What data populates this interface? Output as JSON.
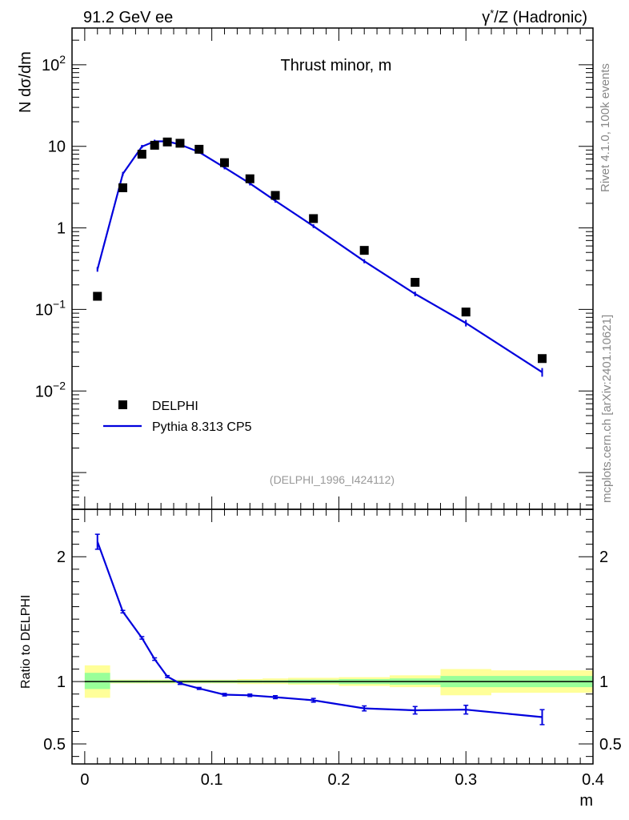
{
  "header": {
    "left": "91.2 GeV ee",
    "right_prefix": "γ",
    "right_sup": "*",
    "right_suffix": "/Z (Hadronic)"
  },
  "side_labels": {
    "rivet": "Rivet 4.1.0,  100k events",
    "mcplots": "mcplots.cern.ch [arXiv:2401.10621]"
  },
  "colors": {
    "data": "#000000",
    "mc": "#0000dd",
    "band_inner": "#99ff99",
    "band_outer": "#ffff99"
  },
  "chart_data": [
    {
      "type": "scatter",
      "title": "Thrust minor, m",
      "analysis_id": "(DELPHI_1996_I424112)",
      "ylabel": {
        "prefix": "N  ",
        "main": "dσ/dm"
      },
      "xlim": [
        -0.01,
        0.4
      ],
      "ylim_log10": [
        -3.45,
        2.45
      ],
      "yscale": "log",
      "y_ticks": [
        {
          "exp": 2,
          "base": "10",
          "sup": "2"
        },
        {
          "exp": 1,
          "base": "10",
          "sup": ""
        },
        {
          "exp": 0,
          "base": "1",
          "sup": ""
        },
        {
          "exp": -1,
          "base": "10",
          "sup": "−1"
        },
        {
          "exp": -2,
          "base": "10",
          "sup": "−2"
        }
      ],
      "legend": [
        "DELPHI",
        "Pythia 8.313 CP5"
      ],
      "series": [
        {
          "name": "DELPHI",
          "marker": "square",
          "x": [
            0.01,
            0.03,
            0.045,
            0.055,
            0.065,
            0.075,
            0.09,
            0.11,
            0.13,
            0.15,
            0.18,
            0.22,
            0.26,
            0.3,
            0.36
          ],
          "y": [
            0.145,
            3.1,
            8.0,
            10.3,
            11.3,
            10.9,
            9.2,
            6.3,
            4.0,
            2.5,
            1.3,
            0.53,
            0.215,
            0.093,
            0.025
          ]
        },
        {
          "name": "Pythia 8.313 CP5",
          "marker": "line",
          "x": [
            0.01,
            0.03,
            0.045,
            0.055,
            0.065,
            0.075,
            0.09,
            0.11,
            0.13,
            0.15,
            0.18,
            0.22,
            0.26,
            0.3,
            0.36
          ],
          "y": [
            0.31,
            4.6,
            9.9,
            11.5,
            11.5,
            10.5,
            8.5,
            5.5,
            3.5,
            2.15,
            1.05,
            0.39,
            0.155,
            0.068,
            0.017
          ],
          "err": [
            0.01,
            0.1,
            0.15,
            0.15,
            0.15,
            0.15,
            0.12,
            0.1,
            0.07,
            0.04,
            0.02,
            0.009,
            0.005,
            0.004,
            0.0015
          ]
        }
      ]
    },
    {
      "type": "line",
      "ylabel": "Ratio to DELPHI",
      "xlabel": "m",
      "xlim": [
        -0.01,
        0.4
      ],
      "ylim": [
        0.34,
        2.38
      ],
      "y_ticks": [
        "0.5",
        "1",
        "2"
      ],
      "y_tick_values": [
        0.5,
        1,
        2
      ],
      "x_ticks": [
        "0",
        "0.1",
        "0.2",
        "0.3",
        "0.4"
      ],
      "x_tick_values": [
        0,
        0.1,
        0.2,
        0.3,
        0.4
      ],
      "bands": [
        {
          "x0": 0.0,
          "x1": 0.02,
          "inner": [
            0.94,
            1.07
          ],
          "outer": [
            0.87,
            1.13
          ]
        },
        {
          "x0": 0.02,
          "x1": 0.04,
          "inner": [
            0.99,
            1.01
          ],
          "outer": [
            0.985,
            1.015
          ]
        },
        {
          "x0": 0.04,
          "x1": 0.05,
          "inner": [
            0.99,
            1.01
          ],
          "outer": [
            0.985,
            1.015
          ]
        },
        {
          "x0": 0.05,
          "x1": 0.06,
          "inner": [
            0.99,
            1.01
          ],
          "outer": [
            0.985,
            1.015
          ]
        },
        {
          "x0": 0.06,
          "x1": 0.07,
          "inner": [
            0.99,
            1.01
          ],
          "outer": [
            0.985,
            1.015
          ]
        },
        {
          "x0": 0.07,
          "x1": 0.08,
          "inner": [
            0.99,
            1.01
          ],
          "outer": [
            0.985,
            1.015
          ]
        },
        {
          "x0": 0.08,
          "x1": 0.1,
          "inner": [
            0.99,
            1.01
          ],
          "outer": [
            0.985,
            1.015
          ]
        },
        {
          "x0": 0.1,
          "x1": 0.12,
          "inner": [
            0.99,
            1.01
          ],
          "outer": [
            0.985,
            1.015
          ]
        },
        {
          "x0": 0.12,
          "x1": 0.14,
          "inner": [
            0.99,
            1.01
          ],
          "outer": [
            0.98,
            1.02
          ]
        },
        {
          "x0": 0.14,
          "x1": 0.16,
          "inner": [
            0.99,
            1.01
          ],
          "outer": [
            0.98,
            1.025
          ]
        },
        {
          "x0": 0.16,
          "x1": 0.2,
          "inner": [
            0.985,
            1.015
          ],
          "outer": [
            0.975,
            1.03
          ]
        },
        {
          "x0": 0.2,
          "x1": 0.24,
          "inner": [
            0.98,
            1.02
          ],
          "outer": [
            0.965,
            1.035
          ]
        },
        {
          "x0": 0.24,
          "x1": 0.28,
          "inner": [
            0.975,
            1.025
          ],
          "outer": [
            0.955,
            1.05
          ]
        },
        {
          "x0": 0.28,
          "x1": 0.32,
          "inner": [
            0.955,
            1.045
          ],
          "outer": [
            0.89,
            1.1
          ]
        },
        {
          "x0": 0.32,
          "x1": 0.4,
          "inner": [
            0.955,
            1.045
          ],
          "outer": [
            0.91,
            1.09
          ]
        }
      ],
      "series": [
        {
          "name": "Pythia 8.313 CP5 / DELPHI",
          "x": [
            0.01,
            0.03,
            0.045,
            0.055,
            0.065,
            0.075,
            0.09,
            0.11,
            0.13,
            0.15,
            0.18,
            0.22,
            0.26,
            0.3,
            0.36
          ],
          "y": [
            2.12,
            1.56,
            1.35,
            1.18,
            1.04,
            0.985,
            0.945,
            0.895,
            0.89,
            0.875,
            0.85,
            0.785,
            0.77,
            0.775,
            0.715
          ],
          "err": [
            0.06,
            0.01,
            0.01,
            0.01,
            0.008,
            0.008,
            0.008,
            0.01,
            0.01,
            0.012,
            0.015,
            0.02,
            0.03,
            0.035,
            0.06
          ]
        }
      ]
    }
  ]
}
